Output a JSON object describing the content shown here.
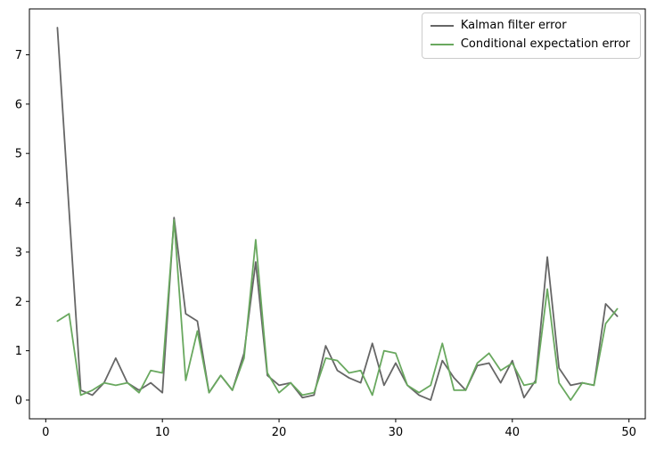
{
  "figure": {
    "background": "#ffffff",
    "frame_color": "#000000"
  },
  "chart_data": {
    "type": "line",
    "title": "",
    "xlabel": "",
    "ylabel": "",
    "grid": false,
    "legend_position": "upper right",
    "xlim": [
      -1.4,
      51.4
    ],
    "ylim": [
      -0.38,
      7.93
    ],
    "xticks": [
      0,
      10,
      20,
      30,
      40,
      50
    ],
    "yticks": [
      0,
      1,
      2,
      3,
      4,
      5,
      6,
      7
    ],
    "x": [
      1,
      2,
      3,
      4,
      5,
      6,
      7,
      8,
      9,
      10,
      11,
      12,
      13,
      14,
      15,
      16,
      17,
      18,
      19,
      20,
      21,
      22,
      23,
      24,
      25,
      26,
      27,
      28,
      29,
      30,
      31,
      32,
      33,
      34,
      35,
      36,
      37,
      38,
      39,
      40,
      41,
      42,
      43,
      44,
      45,
      46,
      47,
      48,
      49
    ],
    "series": [
      {
        "name": "Kalman filter error",
        "color": "#666666",
        "values": [
          7.55,
          3.85,
          0.2,
          0.1,
          0.35,
          0.85,
          0.35,
          0.2,
          0.35,
          0.15,
          3.7,
          1.75,
          1.6,
          0.15,
          0.5,
          0.2,
          0.95,
          2.8,
          0.5,
          0.3,
          0.35,
          0.05,
          0.1,
          1.1,
          0.6,
          0.45,
          0.35,
          1.15,
          0.3,
          0.75,
          0.3,
          0.1,
          0.0,
          0.8,
          0.45,
          0.2,
          0.7,
          0.75,
          0.35,
          0.8,
          0.05,
          0.4,
          2.9,
          0.65,
          0.3,
          0.35,
          0.3,
          1.95,
          1.7
        ]
      },
      {
        "name": "Conditional expectation error",
        "color": "#69a85f",
        "values": [
          1.6,
          1.75,
          0.1,
          0.2,
          0.35,
          0.3,
          0.35,
          0.15,
          0.6,
          0.55,
          3.65,
          0.4,
          1.4,
          0.15,
          0.5,
          0.2,
          0.85,
          3.25,
          0.55,
          0.15,
          0.35,
          0.1,
          0.15,
          0.85,
          0.8,
          0.55,
          0.6,
          0.1,
          1.0,
          0.95,
          0.3,
          0.15,
          0.3,
          1.15,
          0.2,
          0.2,
          0.75,
          0.95,
          0.6,
          0.75,
          0.3,
          0.35,
          2.25,
          0.35,
          0.0,
          0.35,
          0.3,
          1.55,
          1.85
        ]
      }
    ]
  }
}
